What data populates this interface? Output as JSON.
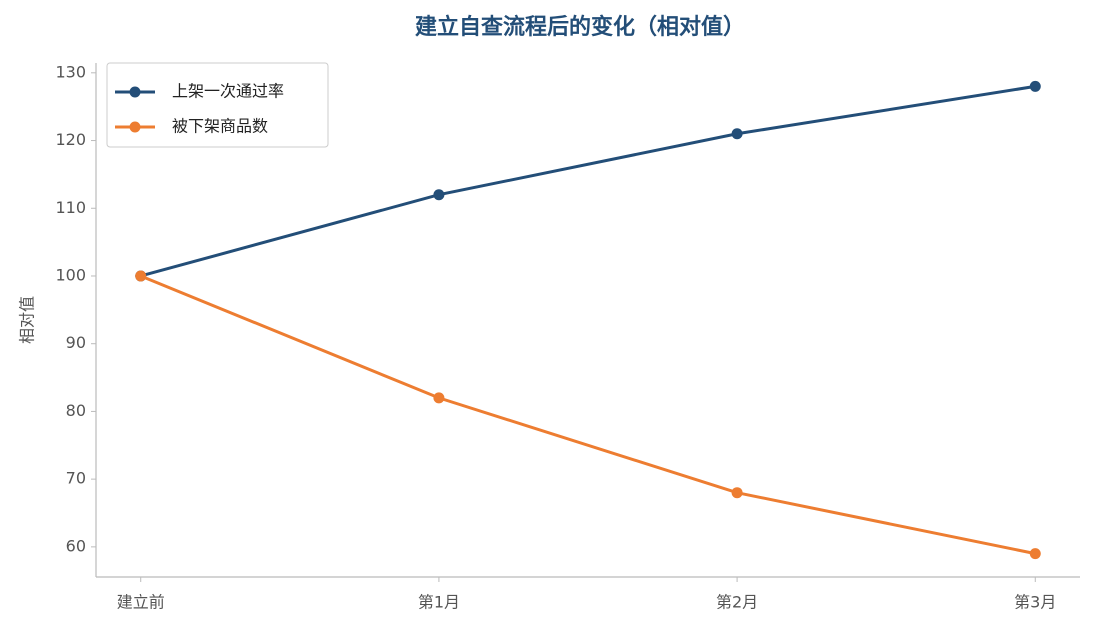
{
  "chart_data": {
    "type": "line",
    "title": "建立自查流程后的变化（相对值）",
    "y_label": "相对值",
    "categories": [
      "建立前",
      "第1月",
      "第2月",
      "第3月"
    ],
    "series": [
      {
        "name": "上架一次通过率",
        "color": "#234e78",
        "values": [
          100,
          112,
          121,
          128
        ]
      },
      {
        "name": "被下架商品数",
        "color": "#ed7d31",
        "values": [
          100,
          82,
          68,
          59
        ]
      }
    ],
    "ylim": [
      55.55,
      131.45
    ],
    "yticks": [
      60,
      70,
      80,
      90,
      100,
      110,
      120,
      130
    ],
    "grid": false,
    "legend": "upper left"
  }
}
